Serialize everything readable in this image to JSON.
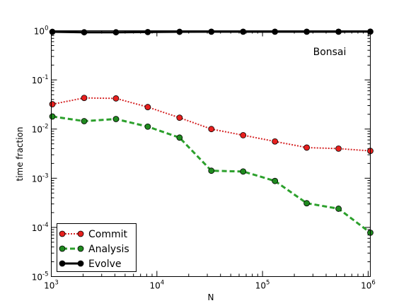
{
  "chart_data": {
    "type": "line",
    "title": "",
    "annotation": "Bonsai",
    "xlabel": "N",
    "ylabel": "time fraction",
    "xscale": "log",
    "yscale": "log",
    "xlim": [
      1000,
      1048576
    ],
    "ylim": [
      1e-05,
      1
    ],
    "grid": false,
    "legend_position": "lower-left",
    "x": [
      1024,
      2048,
      4096,
      8192,
      16384,
      32768,
      65536,
      131072,
      262144,
      524288,
      1048576
    ],
    "x_ticks": [
      {
        "value": 1000,
        "base": "10",
        "exp": "3"
      },
      {
        "value": 10000,
        "base": "10",
        "exp": "4"
      },
      {
        "value": 100000,
        "base": "10",
        "exp": "5"
      },
      {
        "value": 1000000,
        "base": "10",
        "exp": "6"
      }
    ],
    "y_ticks": [
      {
        "value": 1e-05,
        "base": "10",
        "exp": "-5"
      },
      {
        "value": 0.0001,
        "base": "10",
        "exp": "-4"
      },
      {
        "value": 0.001,
        "base": "10",
        "exp": "-3"
      },
      {
        "value": 0.01,
        "base": "10",
        "exp": "-2"
      },
      {
        "value": 0.1,
        "base": "10",
        "exp": "-1"
      },
      {
        "value": 1,
        "base": "10",
        "exp": "0"
      }
    ],
    "series": [
      {
        "name": "Commit",
        "color": "#d62728",
        "marker_color": "#e8201e",
        "line_style": "dotted",
        "values": [
          0.032,
          0.043,
          0.042,
          0.028,
          0.017,
          0.01,
          0.0075,
          0.0056,
          0.0042,
          0.004,
          0.0036
        ]
      },
      {
        "name": "Analysis",
        "color": "#2ca02c",
        "marker_color": "#1f8a1f",
        "line_style": "dashed",
        "values": [
          0.018,
          0.0145,
          0.016,
          0.0112,
          0.0067,
          0.00142,
          0.00137,
          0.00088,
          0.00031,
          0.00024,
          7.8e-05
        ]
      },
      {
        "name": "Evolve",
        "color": "#000000",
        "marker_color": "#000000",
        "line_style": "solid",
        "values": [
          0.95,
          0.93,
          0.93,
          0.94,
          0.95,
          0.955,
          0.955,
          0.955,
          0.955,
          0.955,
          0.96
        ]
      }
    ]
  }
}
